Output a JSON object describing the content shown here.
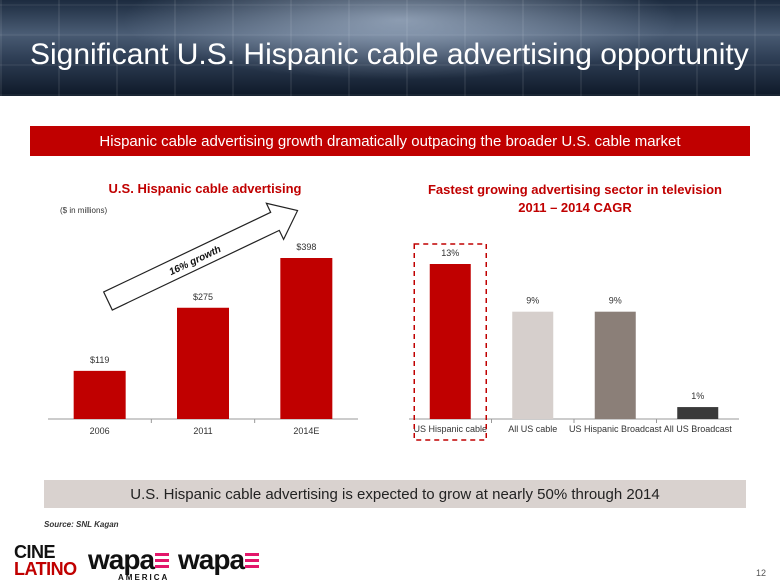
{
  "header": {
    "title": "Significant U.S. Hispanic cable advertising opportunity",
    "subheader": "Hispanic cable advertising growth dramatically outpacing the broader U.S. cable market"
  },
  "conclusion": "U.S. Hispanic cable advertising is expected to grow at nearly 50% through 2014",
  "source": "Source: SNL Kagan",
  "page_number": "12",
  "logos": {
    "cine_line1": "CINE",
    "cine_line2": "LATINO",
    "wapa_america": "wapa",
    "wapa_america_sub": "AMERICA",
    "wapa": "wapa"
  },
  "colors": {
    "accent_red": "#c00000",
    "light_gray": "#d6cfcc",
    "mid_gray": "#8b7f78",
    "dark_gray": "#3a3a3a"
  },
  "chart_data": [
    {
      "type": "bar",
      "title": "U.S. Hispanic cable advertising",
      "unit_note": "($ in millions)",
      "categories": [
        "2006",
        "2011",
        "2014E"
      ],
      "values": [
        119,
        275,
        398
      ],
      "data_labels": [
        "$119",
        "$275",
        "$398"
      ],
      "ylim": [
        0,
        500
      ],
      "annotation": "16% growth",
      "grid": false
    },
    {
      "type": "bar",
      "title_line1": "Fastest growing advertising sector in television",
      "title_line2": "2011 – 2014 CAGR",
      "categories": [
        "US Hispanic cable",
        "All US cable",
        "US Hispanic Broadcast",
        "All US Broadcast"
      ],
      "values": [
        13,
        9,
        9,
        1
      ],
      "data_labels": [
        "13%",
        "9%",
        "9%",
        "1%"
      ],
      "ylim": [
        0,
        14
      ],
      "bar_colors": [
        "#c00000",
        "#d6cfcc",
        "#8b7f78",
        "#3a3a3a"
      ],
      "highlighted_category": "US Hispanic cable",
      "grid": false
    }
  ]
}
